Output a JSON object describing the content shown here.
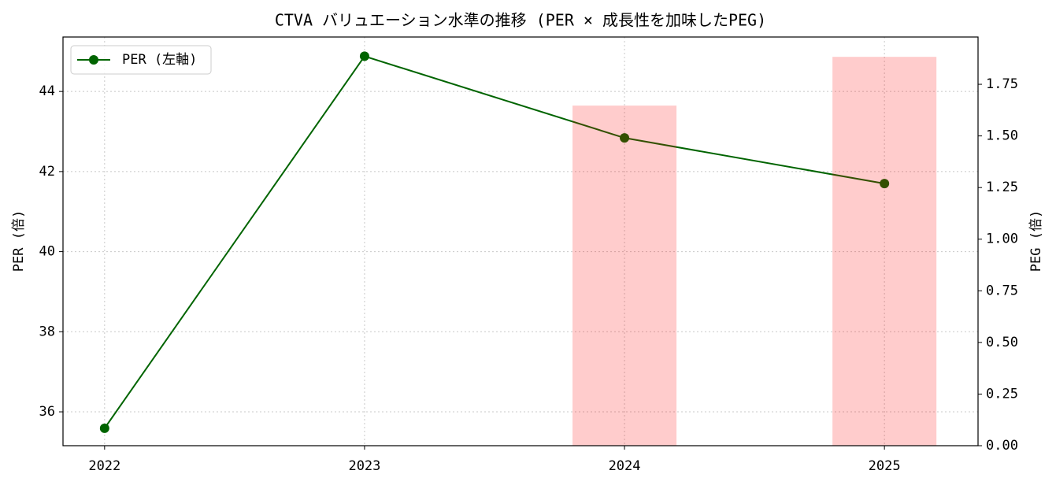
{
  "chart_data": {
    "type": "combo",
    "title": "CTVA バリュエーション水準の推移 (PER × 成長性を加味したPEG)",
    "x": [
      2022,
      2023,
      2024,
      2025
    ],
    "xlim": [
      2021.84,
      2025.36
    ],
    "xticks": [
      2022,
      2023,
      2024,
      2025
    ],
    "ylabel": "PER (倍)",
    "y2label": "PEG (倍)",
    "ylim": [
      35.155,
      45.36
    ],
    "yticks": [
      36,
      38,
      40,
      42,
      44
    ],
    "y2lim": [
      0,
      1.979
    ],
    "y2ticks": [
      {
        "value": 0,
        "label": "0.00"
      },
      {
        "value": 0.25,
        "label": "0.25"
      },
      {
        "value": 0.5,
        "label": "0.50"
      },
      {
        "value": 0.75,
        "label": "0.75"
      },
      {
        "value": 1,
        "label": "1.00"
      },
      {
        "value": 1.25,
        "label": "1.25"
      },
      {
        "value": 1.5,
        "label": "1.50"
      },
      {
        "value": 1.75,
        "label": "1.75"
      }
    ],
    "grid": true,
    "legend": "upper left",
    "series": [
      {
        "name": "PER (左軸)",
        "type": "line",
        "color": "#006400",
        "values": [
          35.59,
          44.88,
          42.84,
          41.7
        ]
      },
      {
        "type": "bar",
        "axis": "y2",
        "color": "#ff0000",
        "values": [
          null,
          null,
          1.647,
          1.883
        ]
      }
    ]
  }
}
